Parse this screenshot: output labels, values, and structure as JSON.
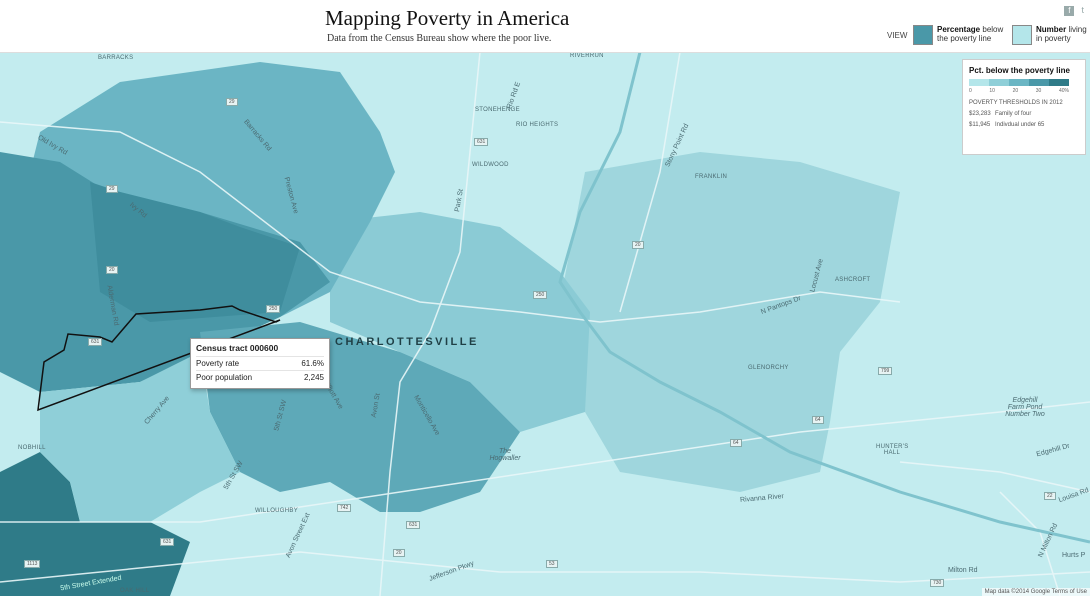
{
  "header": {
    "title": "Mapping Poverty in America",
    "subtitle": "Data from the Census Bureau show where the poor live.",
    "view_label": "VIEW",
    "view_options": [
      {
        "bold": "Percentage",
        "rest_line1": "below",
        "line2": "the poverty line",
        "selected": true
      },
      {
        "bold": "Number",
        "rest_line1": "living",
        "line2": "in poverty",
        "selected": false
      }
    ],
    "social": {
      "facebook": "f",
      "twitter": "t"
    }
  },
  "map": {
    "city_label": "CHARLOTTESVILLE",
    "place_labels": [
      "BARRACKS",
      "RIVERRUN",
      "STONEHENGE",
      "RIO HEIGHTS",
      "WILDWOOD",
      "FRANKLIN",
      "ASHCROFT",
      "GLENORCHY",
      "HUNTER'S HALL",
      "NOBHILL",
      "WILLOUGHBY",
      "OAK HILL"
    ],
    "street_labels": [
      "Barracks Rd",
      "Old Ivy Rd",
      "Ivy Rd",
      "Preston Ave",
      "Rio Rd E",
      "Park St",
      "Stony Point Rd",
      "Alderman Rd",
      "Cherry Ave",
      "5th St SW",
      "Elliott Ave",
      "Avon St",
      "Monticello Ave",
      "5th St SW",
      "Avon Street Ext",
      "Jefferson Pkwy",
      "Rivanna River",
      "Milton Rd",
      "N Pantops Dr",
      "Louisa Rd",
      "Edgehill Dr",
      "N Milton Rd",
      "Hurts P",
      "Locust Ave",
      "Rivanna River",
      "5th Street Extended",
      "Edgehill Farm Pond Number Two",
      "The Hogwaller"
    ],
    "shields": [
      "29",
      "631",
      "250",
      "20",
      "250",
      "29",
      "20",
      "64",
      "64",
      "742",
      "631",
      "20",
      "53",
      "1113",
      "631",
      "799",
      "22",
      "20",
      "29",
      "250",
      "730",
      "631"
    ],
    "attribution": "Map data ©2014 Google  Terms of Use"
  },
  "tooltip": {
    "title": "Census tract 000600",
    "rows": [
      {
        "label": "Poverty rate",
        "value": "61.6%"
      },
      {
        "label": "Poor population",
        "value": "2,245"
      }
    ]
  },
  "legend": {
    "title": "Pct. below the poverty line",
    "colors": [
      "#b4e6ea",
      "#8fcfd8",
      "#6bb6c4",
      "#4a98a8",
      "#2f7b88"
    ],
    "ticks": [
      "0",
      "10",
      "20",
      "30",
      "40%"
    ],
    "thresholds_title": "POVERTY THRESHOLDS IN 2012",
    "thresholds": [
      {
        "amount": "$23,283",
        "label": "Family of four"
      },
      {
        "amount": "$11,945",
        "label": "Indivdual under 65"
      }
    ]
  }
}
